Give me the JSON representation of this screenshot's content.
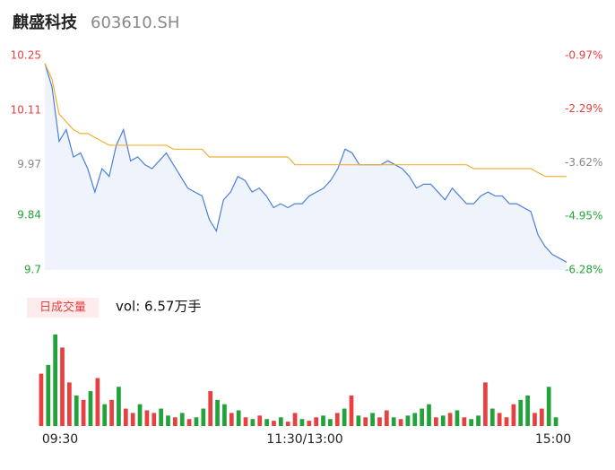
{
  "chart_data": {
    "type": "intraday",
    "title": "麒盛科技",
    "subtitle": "603610.SH",
    "ylim": [
      9.7,
      10.25
    ],
    "yticks": [
      9.7,
      9.84,
      9.97,
      10.11,
      10.25
    ],
    "y2lim": [
      -6.28,
      -0.97
    ],
    "y2ticks": [
      {
        "value": -6.28,
        "label": "-6.28%"
      },
      {
        "value": -4.95,
        "label": "-4.95%"
      },
      {
        "value": -3.62,
        "label": "-3.62%"
      },
      {
        "value": -2.29,
        "label": "-2.29%"
      },
      {
        "value": -0.97,
        "label": "-0.97%"
      }
    ],
    "x_labels": [
      "09:30",
      "11:30/13:00",
      "15:00"
    ],
    "series": [
      {
        "color": "#4a7fdc",
        "values": [
          10.23,
          10.17,
          10.03,
          10.06,
          9.99,
          10.0,
          9.96,
          9.9,
          9.96,
          9.94,
          10.02,
          10.06,
          9.98,
          9.99,
          9.97,
          9.96,
          9.98,
          10.0,
          9.97,
          9.94,
          9.91,
          9.9,
          9.89,
          9.83,
          9.8,
          9.88,
          9.9,
          9.94,
          9.93,
          9.9,
          9.91,
          9.89,
          9.86,
          9.87,
          9.86,
          9.87,
          9.87,
          9.89,
          9.9,
          9.91,
          9.93,
          9.96,
          10.01,
          10.0,
          9.97,
          9.97,
          9.97,
          9.97,
          9.98,
          9.97,
          9.96,
          9.94,
          9.91,
          9.92,
          9.92,
          9.9,
          9.88,
          9.91,
          9.89,
          9.87,
          9.87,
          9.89,
          9.9,
          9.89,
          9.89,
          9.87,
          9.87,
          9.86,
          9.85,
          9.79,
          9.76,
          9.74,
          9.73,
          9.72
        ]
      },
      {
        "color": "#f0b030",
        "values": [
          10.23,
          10.19,
          10.1,
          10.08,
          10.06,
          10.05,
          10.05,
          10.04,
          10.03,
          10.02,
          10.02,
          10.02,
          10.02,
          10.02,
          10.02,
          10.02,
          10.02,
          10.02,
          10.01,
          10.01,
          10.01,
          10.01,
          10.01,
          9.99,
          9.99,
          9.99,
          9.99,
          9.99,
          9.99,
          9.99,
          9.99,
          9.99,
          9.99,
          9.99,
          9.99,
          9.97,
          9.97,
          9.97,
          9.97,
          9.97,
          9.97,
          9.97,
          9.97,
          9.97,
          9.97,
          9.97,
          9.97,
          9.97,
          9.97,
          9.97,
          9.97,
          9.97,
          9.97,
          9.97,
          9.97,
          9.97,
          9.97,
          9.97,
          9.97,
          9.97,
          9.96,
          9.96,
          9.96,
          9.96,
          9.96,
          9.96,
          9.96,
          9.96,
          9.96,
          9.95,
          9.94,
          9.94,
          9.94,
          9.94
        ]
      }
    ],
    "volume_legend": "日成交量",
    "volume_text": "vol: 6.57万手",
    "volume_ylim": [
      0,
      110
    ],
    "volume": [
      60,
      70,
      105,
      90,
      50,
      35,
      30,
      40,
      55,
      25,
      30,
      45,
      20,
      15,
      25,
      18,
      15,
      20,
      12,
      10,
      15,
      8,
      10,
      20,
      40,
      30,
      25,
      15,
      18,
      10,
      8,
      12,
      8,
      6,
      10,
      5,
      15,
      8,
      6,
      10,
      12,
      8,
      15,
      20,
      35,
      12,
      10,
      15,
      10,
      18,
      10,
      8,
      12,
      15,
      20,
      25,
      10,
      12,
      15,
      18,
      10,
      8,
      12,
      50,
      20,
      15,
      10,
      25,
      30,
      35,
      15,
      20,
      45,
      10
    ],
    "volume_colors": [
      "#e84040",
      "#22a33a",
      "#22a33a",
      "#e84040",
      "#e84040",
      "#22a33a",
      "#e84040",
      "#22a33a",
      "#e84040",
      "#22a33a",
      "#e84040",
      "#22a33a",
      "#e84040",
      "#e84040",
      "#22a33a",
      "#e84040",
      "#e84040",
      "#22a33a",
      "#22a33a",
      "#e84040",
      "#22a33a",
      "#e84040",
      "#22a33a",
      "#22a33a",
      "#e84040",
      "#22a33a",
      "#22a33a",
      "#e84040",
      "#22a33a",
      "#e84040",
      "#22a33a",
      "#e84040",
      "#22a33a",
      "#e84040",
      "#22a33a",
      "#e84040",
      "#e84040",
      "#22a33a",
      "#e84040",
      "#e84040",
      "#22a33a",
      "#22a33a",
      "#e84040",
      "#22a33a",
      "#e84040",
      "#22a33a",
      "#e84040",
      "#22a33a",
      "#e84040",
      "#e84040",
      "#22a33a",
      "#e84040",
      "#22a33a",
      "#22a33a",
      "#22a33a",
      "#22a33a",
      "#e84040",
      "#22a33a",
      "#e84040",
      "#22a33a",
      "#e84040",
      "#22a33a",
      "#22a33a",
      "#e84040",
      "#22a33a",
      "#e84040",
      "#e84040",
      "#e84040",
      "#22a33a",
      "#22a33a",
      "#e84040",
      "#e84040",
      "#22a33a",
      "#22a33a"
    ]
  }
}
